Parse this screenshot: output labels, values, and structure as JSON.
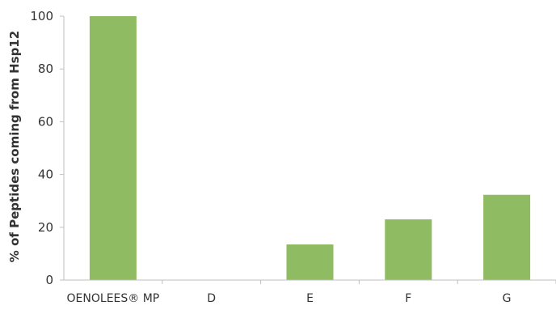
{
  "chart_data": {
    "type": "bar",
    "categories": [
      "OENOLEES® MP",
      "D",
      "E",
      "F",
      "G"
    ],
    "values": [
      100,
      0,
      13.5,
      23,
      32.3
    ],
    "title": "",
    "xlabel": "",
    "ylabel": "% of Peptides coming from Hsp12",
    "ylim": [
      0,
      100
    ],
    "yticks": [
      "0",
      "20",
      "40",
      "60",
      "80",
      "100"
    ],
    "grid": false,
    "legend": "none",
    "bar_color": "#8fbc62",
    "axis_color": "#bfbfbf",
    "text_color": "#333333"
  }
}
